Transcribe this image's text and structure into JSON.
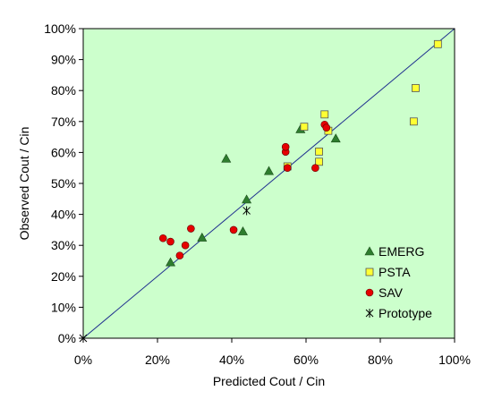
{
  "chart_data": {
    "type": "scatter",
    "xlabel": "Predicted Cout / Cin",
    "ylabel": "Observed Cout / Cin",
    "xlim": [
      0,
      1
    ],
    "ylim": [
      0,
      1
    ],
    "x_ticks": [
      "0%",
      "20%",
      "40%",
      "60%",
      "80%",
      "100%"
    ],
    "y_ticks": [
      "0%",
      "10%",
      "20%",
      "30%",
      "40%",
      "50%",
      "60%",
      "70%",
      "80%",
      "90%",
      "100%"
    ],
    "reference_line": {
      "from": [
        0,
        0
      ],
      "to": [
        1,
        1
      ],
      "color": "#1f2f8f"
    },
    "plot_background": "#ccffcc",
    "legend_position": "bottom-right",
    "series": [
      {
        "name": "EMERG",
        "marker": "triangle",
        "color": "#2e7d2e",
        "points": [
          [
            0.235,
            0.245
          ],
          [
            0.32,
            0.325
          ],
          [
            0.43,
            0.345
          ],
          [
            0.44,
            0.448
          ],
          [
            0.385,
            0.58
          ],
          [
            0.5,
            0.54
          ],
          [
            0.585,
            0.675
          ],
          [
            0.68,
            0.645
          ]
        ]
      },
      {
        "name": "PSTA",
        "marker": "square",
        "color": "#ffff33",
        "points": [
          [
            0.55,
            0.555
          ],
          [
            0.595,
            0.683
          ],
          [
            0.635,
            0.603
          ],
          [
            0.635,
            0.57
          ],
          [
            0.65,
            0.723
          ],
          [
            0.66,
            0.67
          ],
          [
            0.89,
            0.7
          ],
          [
            0.895,
            0.808
          ],
          [
            0.955,
            0.95
          ]
        ]
      },
      {
        "name": "SAV",
        "marker": "circle",
        "color": "#e60000",
        "points": [
          [
            0.215,
            0.323
          ],
          [
            0.235,
            0.312
          ],
          [
            0.26,
            0.267
          ],
          [
            0.275,
            0.3
          ],
          [
            0.29,
            0.354
          ],
          [
            0.405,
            0.35
          ],
          [
            0.55,
            0.55
          ],
          [
            0.545,
            0.602
          ],
          [
            0.545,
            0.618
          ],
          [
            0.625,
            0.55
          ],
          [
            0.65,
            0.69
          ],
          [
            0.655,
            0.68
          ]
        ]
      },
      {
        "name": "Prototype",
        "marker": "asterisk",
        "color": "#000000",
        "points": [
          [
            0.44,
            0.412
          ],
          [
            0.0,
            0.0
          ]
        ]
      }
    ]
  }
}
